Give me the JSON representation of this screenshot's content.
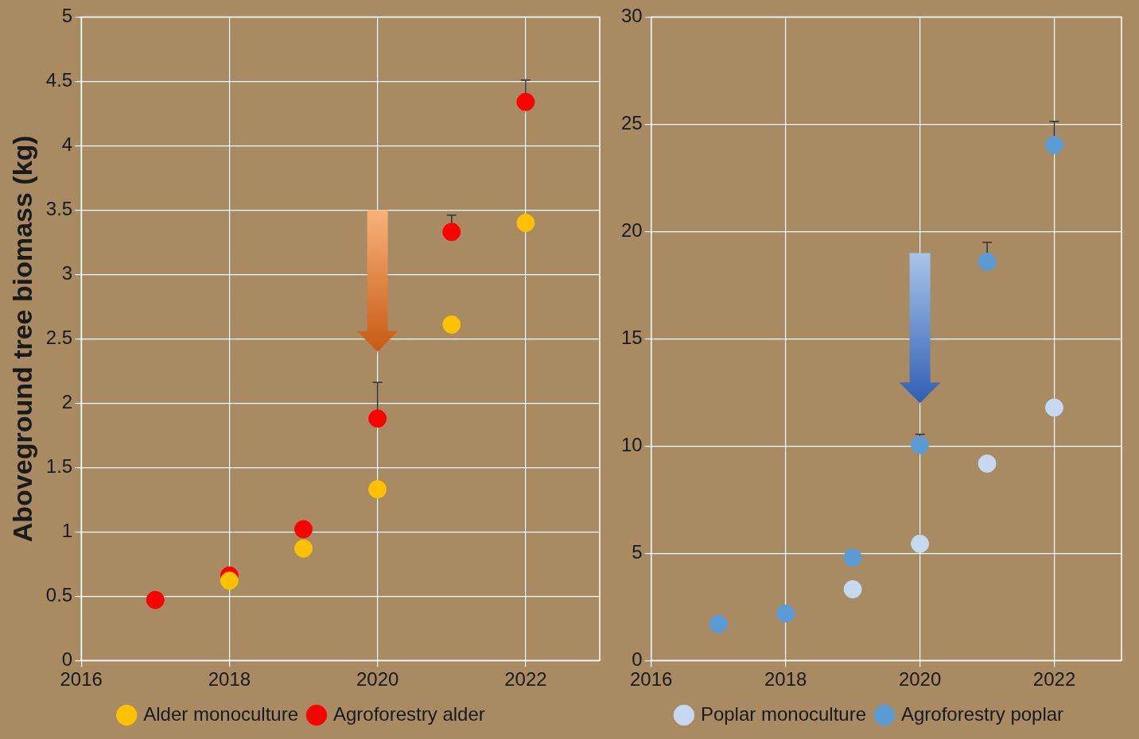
{
  "chart_data": [
    {
      "type": "scatter",
      "y_label": "Aboveground tree biomass (kg)",
      "x": [
        2017,
        2018,
        2019,
        2020,
        2021,
        2022
      ],
      "series": [
        {
          "name": "Alder monoculture",
          "color": "#ffc000",
          "marker": "circle",
          "values": [
            null,
            0.62,
            0.87,
            1.33,
            2.61,
            3.4
          ],
          "errors": [
            null,
            null,
            null,
            null,
            null,
            null
          ]
        },
        {
          "name": "Agroforestry alder",
          "color": "#ff0000",
          "marker": "circle",
          "values": [
            0.47,
            0.66,
            1.02,
            1.88,
            3.33,
            4.34
          ],
          "errors": [
            null,
            null,
            null,
            0.28,
            0.13,
            0.17
          ]
        }
      ],
      "xlim": [
        2016,
        2023
      ],
      "xticks": [
        2016,
        2018,
        2020,
        2022
      ],
      "ylim": [
        0,
        5
      ],
      "yticks": [
        0,
        0.5,
        1,
        1.5,
        2,
        2.5,
        3,
        3.5,
        4,
        4.5,
        5
      ],
      "grid": true,
      "legend": "bottom"
    },
    {
      "type": "scatter",
      "x": [
        2017,
        2018,
        2019,
        2020,
        2021,
        2022
      ],
      "series": [
        {
          "name": "Poplar monoculture",
          "color": "#c5d9f1",
          "marker": "circle",
          "values": [
            null,
            null,
            3.32,
            5.44,
            9.18,
            11.79
          ],
          "errors": [
            null,
            null,
            null,
            null,
            null,
            null
          ]
        },
        {
          "name": "Agroforestry poplar",
          "color": "#5b9bd5",
          "marker": "circle",
          "values": [
            1.7,
            2.19,
            4.8,
            10.05,
            18.59,
            24.03
          ],
          "errors": [
            null,
            null,
            null,
            0.5,
            0.9,
            1.1
          ]
        }
      ],
      "xlim": [
        2016,
        2023
      ],
      "xticks": [
        2016,
        2018,
        2020,
        2022
      ],
      "ylim": [
        0,
        30
      ],
      "yticks": [
        0,
        5,
        10,
        15,
        20,
        25,
        30
      ],
      "grid": true,
      "legend": "bottom"
    }
  ]
}
